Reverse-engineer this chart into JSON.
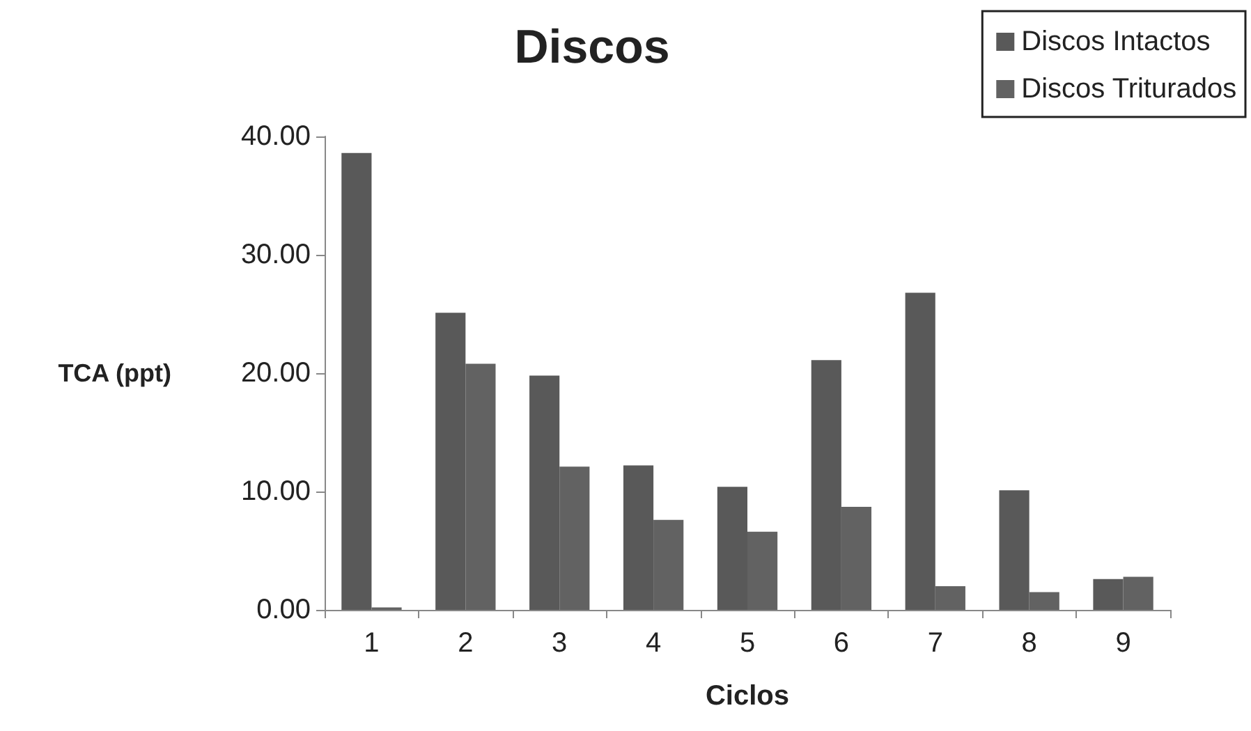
{
  "chart_data": {
    "type": "bar",
    "title": "Discos",
    "xlabel": "Ciclos",
    "ylabel": "TCA (ppt)",
    "categories": [
      "1",
      "2",
      "3",
      "4",
      "5",
      "6",
      "7",
      "8",
      "9"
    ],
    "series": [
      {
        "name": "Discos Intactos",
        "color": "#595959",
        "values": [
          38.6,
          25.1,
          19.8,
          12.2,
          10.4,
          21.1,
          26.8,
          10.1,
          2.6
        ]
      },
      {
        "name": "Discos Triturados",
        "color": "#626262",
        "values": [
          0.2,
          20.8,
          12.1,
          7.6,
          6.6,
          8.7,
          2.0,
          1.5,
          2.8
        ]
      }
    ],
    "ylim": [
      0,
      40
    ],
    "yticks": [
      {
        "value": 0,
        "label": "0.00"
      },
      {
        "value": 10,
        "label": "10.00"
      },
      {
        "value": 20,
        "label": "20.00"
      },
      {
        "value": 30,
        "label": "30.00"
      },
      {
        "value": 40,
        "label": "40.00"
      }
    ],
    "grid": false,
    "legend": "top right"
  }
}
